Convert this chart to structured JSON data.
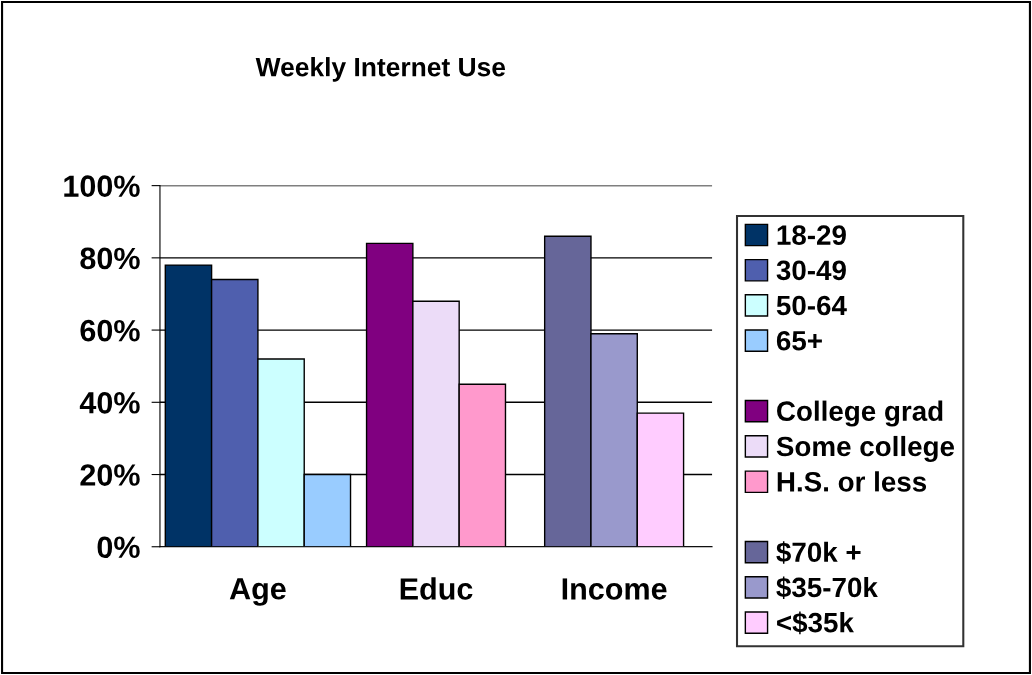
{
  "chart_data": {
    "type": "bar",
    "title": "Weekly Internet Use",
    "categories": [
      "Age",
      "Educ",
      "Income"
    ],
    "series": [
      {
        "name": "18-29",
        "color": "#003366",
        "values": [
          78,
          null,
          null
        ]
      },
      {
        "name": "30-49",
        "color": "#4f5fae",
        "values": [
          74,
          null,
          null
        ]
      },
      {
        "name": "50-64",
        "color": "#ccffff",
        "values": [
          52,
          null,
          null
        ]
      },
      {
        "name": "65+",
        "color": "#99ccff",
        "values": [
          20,
          null,
          null
        ]
      },
      {
        "name": "College grad",
        "color": "#800080",
        "values": [
          null,
          84,
          null
        ]
      },
      {
        "name": "Some college",
        "color": "#ecdcf8",
        "values": [
          null,
          68,
          null
        ]
      },
      {
        "name": "H.S. or less",
        "color": "#ff99cc",
        "values": [
          null,
          45,
          null
        ]
      },
      {
        "name": "$70k +",
        "color": "#666699",
        "values": [
          null,
          null,
          86
        ]
      },
      {
        "name": "$35-70k",
        "color": "#9999cc",
        "values": [
          null,
          null,
          59
        ]
      },
      {
        "name": "<$35k",
        "color": "#ffccff",
        "values": [
          null,
          null,
          37
        ]
      }
    ],
    "ylim": [
      0,
      100
    ],
    "yticks": [
      {
        "value": 0,
        "label": "0%"
      },
      {
        "value": 20,
        "label": "20%"
      },
      {
        "value": 40,
        "label": "40%"
      },
      {
        "value": 60,
        "label": "60%"
      },
      {
        "value": 80,
        "label": "80%"
      },
      {
        "value": 100,
        "label": "100%"
      }
    ],
    "grid": "y",
    "legend": "right"
  }
}
